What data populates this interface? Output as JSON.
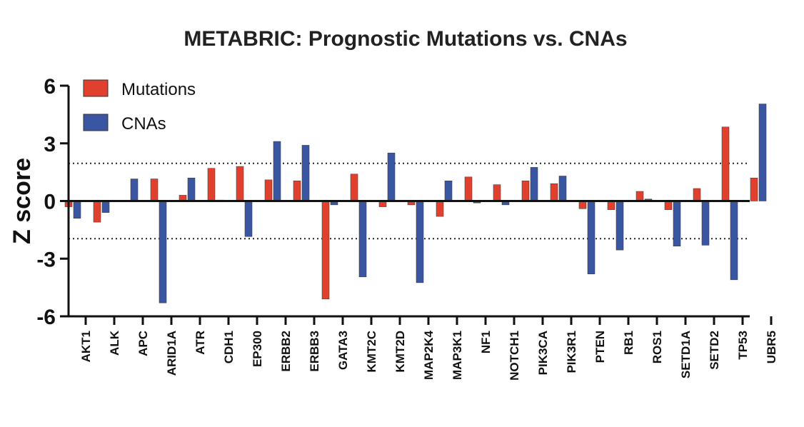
{
  "chart_data": {
    "type": "bar",
    "title": "METABRIC: Prognostic Mutations vs. CNAs",
    "xlabel": "",
    "ylabel": "Z score",
    "ylim": [
      -6,
      6
    ],
    "yticks": [
      6,
      3,
      0,
      -3,
      -6
    ],
    "ytick_labels": [
      "6",
      "3",
      "0",
      "-3",
      "-6"
    ],
    "threshold_lines": [
      1.96,
      -1.96
    ],
    "legend_position": "top-left",
    "categories": [
      "AKT1",
      "ALK",
      "APC",
      "ARID1A",
      "ATR",
      "CDH1",
      "EP300",
      "ERBB2",
      "ERBB3",
      "GATA3",
      "KMT2C",
      "KMT2D",
      "MAP2K4",
      "MAP3K1",
      "NF1",
      "NOTCH1",
      "PIK3CA",
      "PIK3R1",
      "PTEN",
      "RB1",
      "ROS1",
      "SETD1A",
      "SETD2",
      "TP53",
      "UBR5"
    ],
    "series": [
      {
        "name": "Mutations",
        "color": "#e2402f",
        "values": [
          -0.3,
          -1.1,
          0.0,
          1.15,
          0.3,
          1.7,
          1.8,
          1.1,
          1.05,
          -5.1,
          1.4,
          -0.3,
          -0.2,
          -0.8,
          1.25,
          0.85,
          1.05,
          0.9,
          -0.4,
          -0.45,
          0.5,
          -0.45,
          0.65,
          3.85,
          1.2
        ]
      },
      {
        "name": "CNAs",
        "color": "#3a55a2",
        "values": [
          -0.9,
          -0.6,
          1.15,
          -5.3,
          1.2,
          0.05,
          -1.85,
          3.1,
          2.9,
          -0.2,
          -3.95,
          2.5,
          -4.25,
          1.05,
          -0.1,
          -0.2,
          1.75,
          1.3,
          -3.8,
          -2.55,
          0.1,
          -2.35,
          -2.3,
          -4.1,
          5.05
        ]
      }
    ]
  }
}
